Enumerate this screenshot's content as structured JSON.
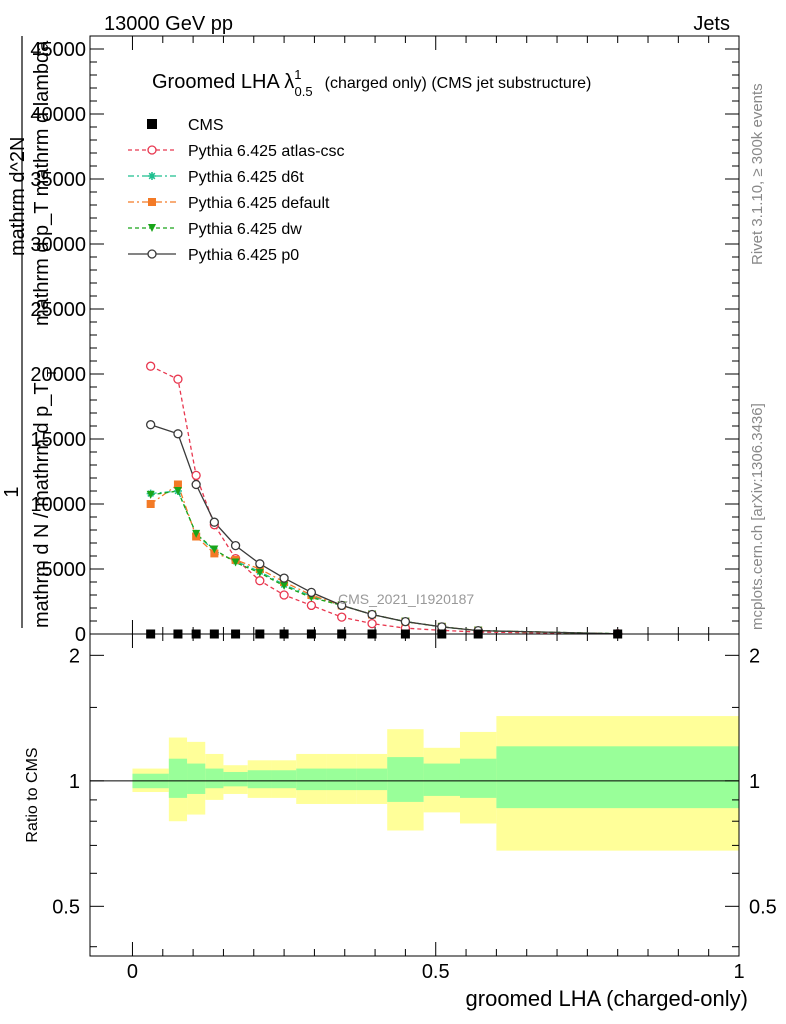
{
  "header": {
    "left": "13000 GeV pp",
    "right": "Jets"
  },
  "title": {
    "main": "Groomed LHA λ",
    "sup": "1",
    "sub": "0.5",
    "rest": "(charged only) (CMS jet substructure)"
  },
  "side_labels": {
    "rivet": "Rivet 3.1.10, ≥ 300k events",
    "mcplots": "mcplots.cern.ch [arXiv:1306.3436]"
  },
  "watermark": "CMS_2021_I1920187",
  "ylabel_main": {
    "one": "1",
    "lines": [
      "mathrm d N / mathrm d p_T",
      "mathrm d^2N",
      "mathrm d p_T mathrm d lambda"
    ],
    "subscript": "T"
  },
  "ylabel_ratio": "Ratio to CMS",
  "xlabel": "groomed LHA (charged-only)",
  "colors": {
    "cms": "#000000",
    "atlas_csc": "#e8374f",
    "d6t": "#1fbf8f",
    "default": "#f37a26",
    "dw": "#19a519",
    "p0": "#3a3a3a",
    "band_inner": "#99ff99",
    "band_outer": "#ffff99"
  },
  "chart_data": [
    {
      "type": "line",
      "panel": "main",
      "xlim": [
        -0.07,
        1.0
      ],
      "ylim": [
        0,
        46000
      ],
      "y_ticks": [
        0,
        5000,
        10000,
        15000,
        20000,
        25000,
        30000,
        35000,
        40000,
        45000
      ],
      "y_tick_labels": [
        "0",
        "5000",
        "10000",
        "15000",
        "20000",
        "25000",
        "30000",
        "35000",
        "40000",
        "45000"
      ],
      "legend_position": "top-left",
      "x": [
        0.03,
        0.075,
        0.105,
        0.135,
        0.17,
        0.21,
        0.25,
        0.295,
        0.345,
        0.395,
        0.45,
        0.51,
        0.57,
        0.8
      ],
      "series": [
        {
          "name": "CMS",
          "style": "square",
          "values": [
            0,
            0,
            0,
            0,
            0,
            0,
            0,
            0,
            0,
            0,
            0,
            0,
            0,
            0
          ]
        },
        {
          "name": "Pythia 6.425 atlas-csc",
          "style": "open-circle-dashed",
          "values": [
            20600,
            19600,
            12200,
            8400,
            5800,
            4100,
            3000,
            2200,
            1300,
            800,
            450,
            280,
            150,
            15
          ]
        },
        {
          "name": "Pythia 6.425 d6t",
          "style": "star-dashdot",
          "values": [
            10800,
            11000,
            7700,
            6400,
            5600,
            4800,
            3800,
            2900,
            2200,
            1500,
            950,
            550,
            260,
            20
          ]
        },
        {
          "name": "Pythia 6.425 default",
          "style": "filled-square-dashdot",
          "values": [
            10000,
            11500,
            7500,
            6200,
            5700,
            5000,
            4000,
            3000,
            2200,
            1500,
            950,
            550,
            260,
            20
          ]
        },
        {
          "name": "Pythia 6.425 dw",
          "style": "triangle-down-dashed",
          "values": [
            10700,
            11000,
            7700,
            6500,
            5500,
            4700,
            3700,
            2800,
            2200,
            1500,
            950,
            550,
            260,
            20
          ]
        },
        {
          "name": "Pythia 6.425 p0",
          "style": "open-circle-solid",
          "values": [
            16100,
            15400,
            11500,
            8600,
            6800,
            5400,
            4300,
            3200,
            2200,
            1500,
            950,
            550,
            260,
            20
          ]
        }
      ]
    },
    {
      "type": "area",
      "panel": "ratio",
      "xlim": [
        -0.07,
        1.0
      ],
      "ylim": [
        0.38,
        2.25
      ],
      "log_scale": true,
      "y_ticks": [
        0.5,
        1,
        2
      ],
      "y_tick_labels": [
        "0.5",
        "1",
        "2"
      ],
      "x_ticks": [
        0,
        0.5,
        1
      ],
      "x_tick_labels": [
        "0",
        "0.5",
        "1"
      ],
      "bin_edges": [
        0,
        0.06,
        0.09,
        0.12,
        0.15,
        0.19,
        0.23,
        0.27,
        0.32,
        0.37,
        0.42,
        0.48,
        0.54,
        0.6,
        1.0
      ],
      "bands": [
        {
          "name": "inner",
          "low": [
            0.96,
            0.91,
            0.93,
            0.96,
            0.97,
            0.96,
            0.96,
            0.95,
            0.95,
            0.95,
            0.89,
            0.92,
            0.91,
            0.86
          ],
          "high": [
            1.04,
            1.13,
            1.1,
            1.07,
            1.05,
            1.06,
            1.06,
            1.07,
            1.07,
            1.07,
            1.14,
            1.1,
            1.13,
            1.21
          ]
        },
        {
          "name": "outer",
          "low": [
            0.94,
            0.8,
            0.83,
            0.9,
            0.93,
            0.91,
            0.91,
            0.88,
            0.88,
            0.88,
            0.76,
            0.84,
            0.79,
            0.68
          ],
          "high": [
            1.07,
            1.27,
            1.24,
            1.16,
            1.09,
            1.12,
            1.12,
            1.16,
            1.16,
            1.16,
            1.33,
            1.2,
            1.31,
            1.43
          ]
        }
      ]
    }
  ]
}
